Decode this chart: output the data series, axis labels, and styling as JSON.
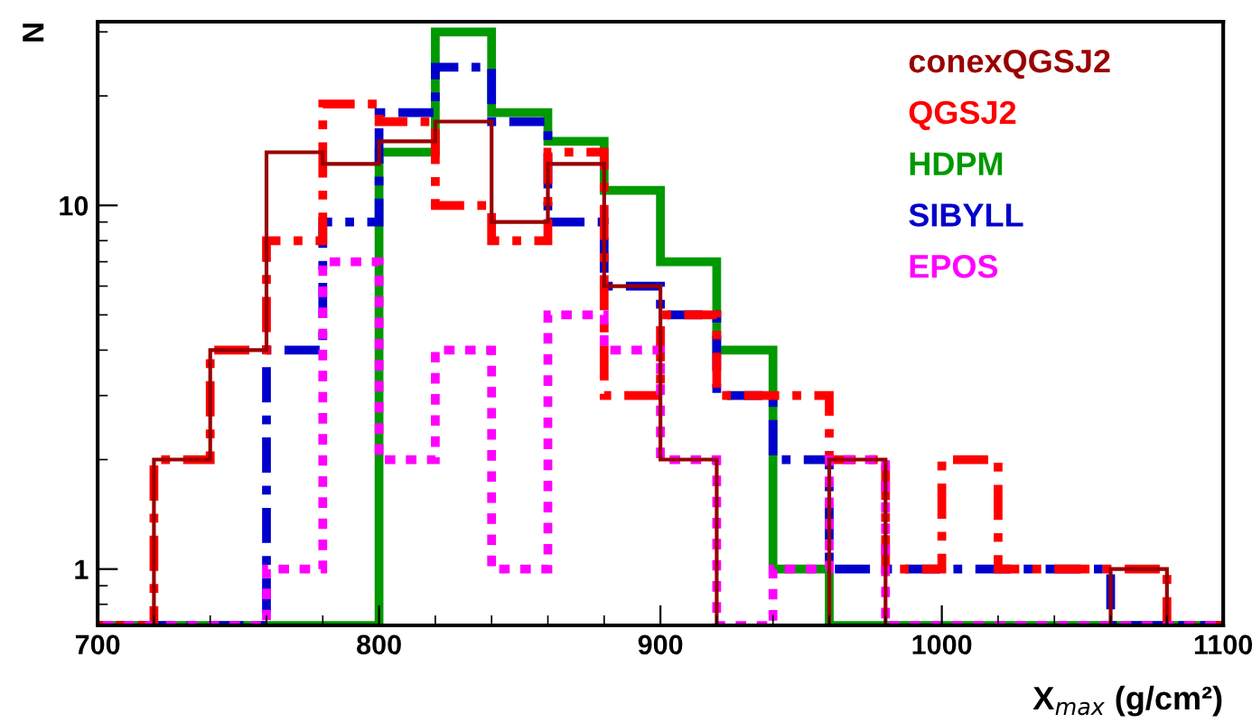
{
  "chart_data": {
    "type": "histogram",
    "xlabel": "X$_{max}$ (g/cm²)",
    "ylabel": "N",
    "bins": [
      700,
      720,
      740,
      760,
      780,
      800,
      820,
      840,
      860,
      880,
      900,
      920,
      940,
      960,
      980,
      1000,
      1020,
      1040,
      1060,
      1080,
      1100
    ],
    "series": [
      {
        "name": "conexQGSJ2",
        "color": "#990000",
        "line_style": "solid",
        "values": [
          null,
          2,
          4,
          14,
          13,
          15,
          17,
          9,
          13,
          6,
          2,
          null,
          null,
          2,
          null,
          null,
          null,
          null,
          1,
          null
        ]
      },
      {
        "name": "QGSJ2",
        "color": "#ff0000",
        "line_style": "dashed",
        "values": [
          null,
          2,
          4,
          8,
          19,
          17,
          10,
          8,
          14,
          3,
          5,
          3,
          3,
          2,
          1,
          2,
          1,
          1,
          1,
          null
        ]
      },
      {
        "name": "HDPM",
        "color": "#009900",
        "line_style": "solid",
        "values": [
          null,
          null,
          null,
          null,
          null,
          14,
          30,
          18,
          15,
          11,
          7,
          4,
          1,
          null,
          null,
          null,
          null,
          null,
          null,
          null
        ]
      },
      {
        "name": "SIBYLL",
        "color": "#0000cc",
        "line_style": "dashed",
        "values": [
          null,
          null,
          null,
          4,
          9,
          18,
          24,
          17,
          9,
          6,
          5,
          3,
          2,
          1,
          1,
          1,
          1,
          1,
          null,
          null
        ]
      },
      {
        "name": "EPOS",
        "color": "#ff00ff",
        "line_style": "dotted",
        "values": [
          null,
          null,
          null,
          1,
          7,
          2,
          4,
          1,
          5,
          4,
          2,
          null,
          1,
          2,
          null,
          null,
          null,
          null,
          null,
          null
        ]
      }
    ],
    "log": "y",
    "xlim": [
      700,
      1100
    ],
    "xticks": [
      700,
      {
        "value": 720,
        "label": null
      },
      {
        "value": 740,
        "label": null
      },
      {
        "value": 760,
        "label": null
      },
      {
        "value": 780,
        "label": null
      },
      800,
      {
        "value": 820,
        "label": null
      },
      {
        "value": 840,
        "label": null
      },
      {
        "value": 860,
        "label": null
      },
      {
        "value": 880,
        "label": null
      },
      900,
      {
        "value": 920,
        "label": null
      },
      {
        "value": 940,
        "label": null
      },
      {
        "value": 960,
        "label": null
      },
      {
        "value": 980,
        "label": null
      },
      1000,
      {
        "value": 1020,
        "label": null
      },
      {
        "value": 1040,
        "label": null
      },
      {
        "value": 1060,
        "label": null
      },
      {
        "value": 1080,
        "label": null
      },
      1100
    ],
    "ylim": [
      0.7,
      32
    ],
    "yticks": [
      1,
      10
    ],
    "grid": false,
    "legend": "top right"
  }
}
